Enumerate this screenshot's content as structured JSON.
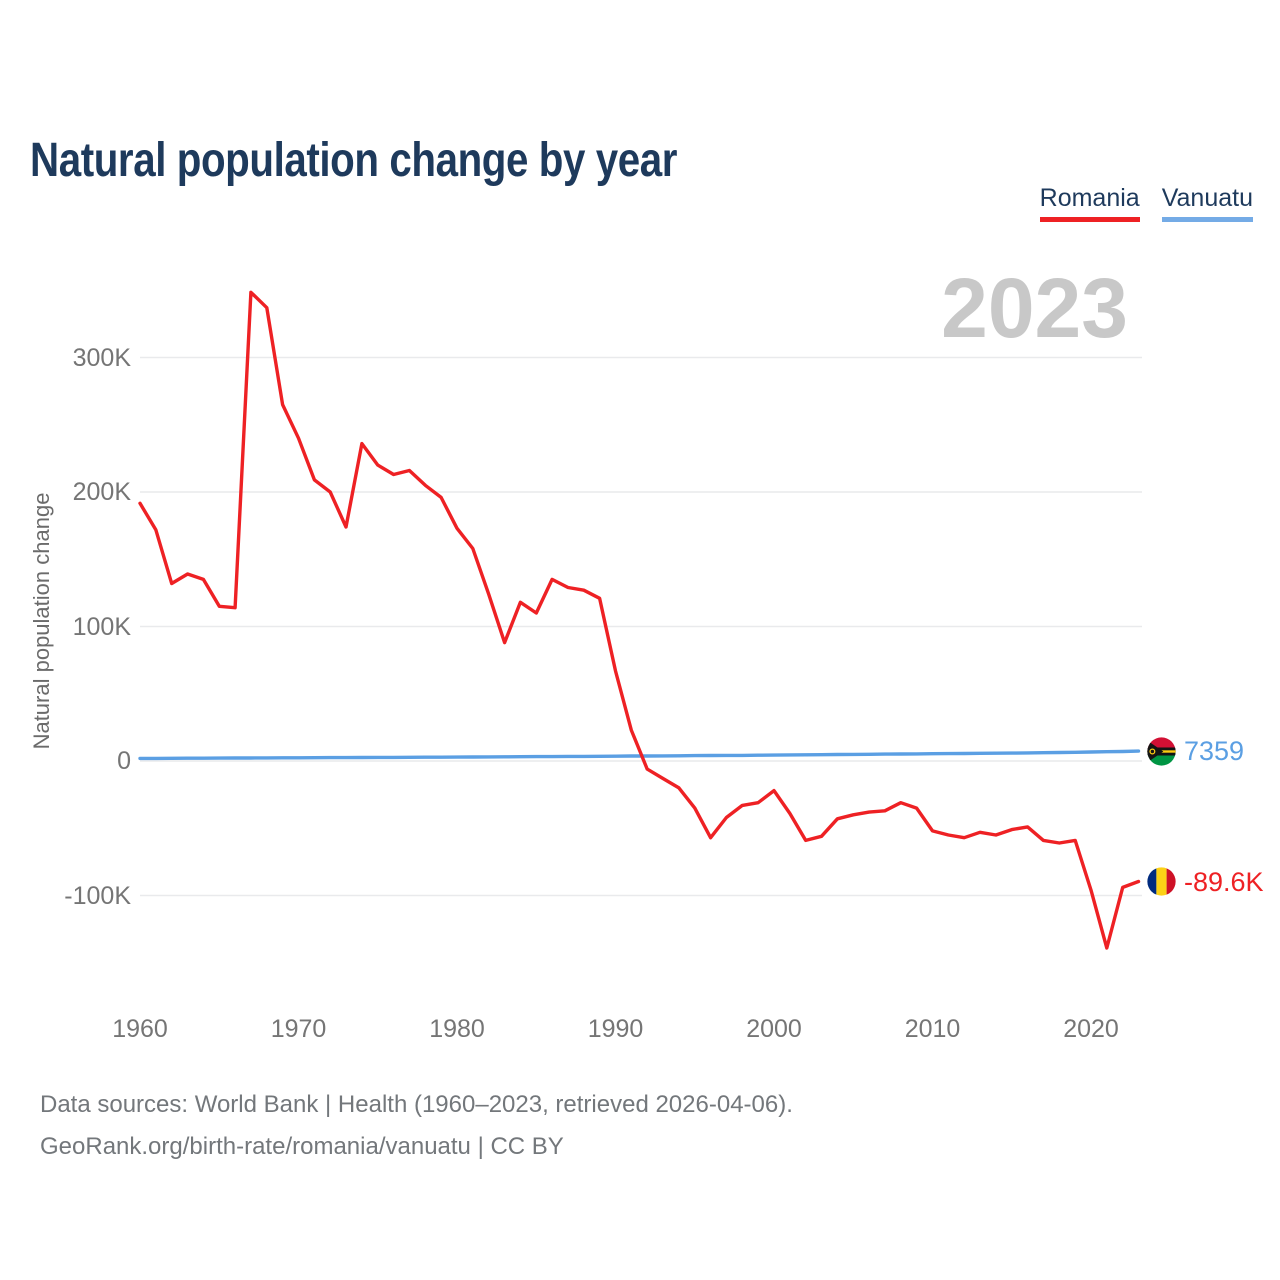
{
  "header": {
    "title": "Natural population change by year"
  },
  "legend": {
    "items": [
      {
        "label": "Romania",
        "color": "#ee2124"
      },
      {
        "label": "Vanuatu",
        "color": "#74abe6"
      }
    ]
  },
  "watermark_year": "2023",
  "chart_data": {
    "type": "line",
    "title": "Natural population change by year",
    "xlabel": "",
    "ylabel": "Natural population change",
    "grid": "horizontal",
    "legend_position": "top-right",
    "xlim": [
      1960,
      2023
    ],
    "ylim": [
      -150000,
      360000
    ],
    "yticks": [
      {
        "value": 300000,
        "label": "300K"
      },
      {
        "value": 200000,
        "label": "200K"
      },
      {
        "value": 100000,
        "label": "100K"
      },
      {
        "value": 0,
        "label": "0"
      },
      {
        "value": -100000,
        "label": "-100K"
      }
    ],
    "xticks": [
      {
        "value": 1960,
        "label": "1960"
      },
      {
        "value": 1970,
        "label": "1970"
      },
      {
        "value": 1980,
        "label": "1980"
      },
      {
        "value": 1990,
        "label": "1990"
      },
      {
        "value": 2000,
        "label": "2000"
      },
      {
        "value": 2010,
        "label": "2010"
      },
      {
        "value": 2020,
        "label": "2020"
      }
    ],
    "x": [
      1960,
      1961,
      1962,
      1963,
      1964,
      1965,
      1966,
      1967,
      1968,
      1969,
      1970,
      1971,
      1972,
      1973,
      1974,
      1975,
      1976,
      1977,
      1978,
      1979,
      1980,
      1981,
      1982,
      1983,
      1984,
      1985,
      1986,
      1987,
      1988,
      1989,
      1990,
      1991,
      1992,
      1993,
      1994,
      1995,
      1996,
      1997,
      1998,
      1999,
      2000,
      2001,
      2002,
      2003,
      2004,
      2005,
      2006,
      2007,
      2008,
      2009,
      2010,
      2011,
      2012,
      2013,
      2014,
      2015,
      2016,
      2017,
      2018,
      2019,
      2020,
      2021,
      2022,
      2023
    ],
    "series": [
      {
        "name": "Romania",
        "color": "#ee2124",
        "end_label": "-89.6K",
        "end_value": -89600,
        "values": [
          191600,
          172000,
          132000,
          139000,
          135000,
          115000,
          114000,
          348500,
          337000,
          265000,
          240000,
          209000,
          200000,
          174000,
          236000,
          220000,
          213000,
          216000,
          205000,
          196000,
          173000,
          158000,
          124000,
          88000,
          118000,
          110000,
          135000,
          129000,
          127000,
          121000,
          67000,
          23000,
          -6000,
          -13000,
          -20000,
          -35000,
          -57000,
          -42000,
          -33000,
          -31000,
          -22000,
          -39000,
          -59000,
          -56000,
          -43000,
          -40000,
          -38000,
          -37000,
          -31000,
          -35000,
          -52000,
          -55000,
          -57000,
          -53000,
          -55000,
          -51000,
          -49000,
          -59000,
          -61000,
          -59000,
          -96000,
          -139000,
          -94000,
          -89600
        ]
      },
      {
        "name": "Vanuatu",
        "color": "#5b9fe3",
        "end_label": "7359",
        "end_value": 7359,
        "values": [
          1900,
          1950,
          2000,
          2050,
          2100,
          2150,
          2200,
          2250,
          2300,
          2350,
          2400,
          2450,
          2500,
          2550,
          2600,
          2650,
          2700,
          2750,
          2800,
          2850,
          2900,
          3000,
          3050,
          3100,
          3200,
          3250,
          3300,
          3400,
          3450,
          3500,
          3600,
          3700,
          3750,
          3800,
          3900,
          4000,
          4100,
          4150,
          4200,
          4300,
          4400,
          4500,
          4600,
          4700,
          4800,
          4900,
          5000,
          5100,
          5200,
          5300,
          5400,
          5500,
          5600,
          5700,
          5800,
          5900,
          6050,
          6200,
          6350,
          6500,
          6700,
          6900,
          7100,
          7359
        ]
      }
    ]
  },
  "footer": {
    "line1": "Data sources: World Bank | Health (1960–2023, retrieved 2026-04-06).",
    "line2": "GeoRank.org/birth-rate/romania/vanuatu | CC BY"
  }
}
